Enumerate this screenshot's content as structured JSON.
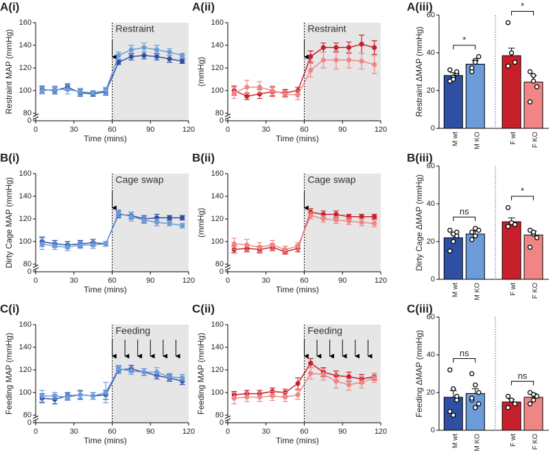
{
  "chart_data": [
    {
      "type": "line",
      "panel_label": "A(i)",
      "ylabel": "Restraint MAP (mmHg)",
      "xlabel": "Time (mins)",
      "x": [
        5,
        15,
        25,
        35,
        45,
        55,
        65,
        75,
        85,
        95,
        105,
        115
      ],
      "xlim": [
        0,
        120
      ],
      "xticks": [
        0,
        30,
        60,
        90,
        120
      ],
      "ylim": [
        80,
        160
      ],
      "yticks": [
        80,
        100,
        120,
        140,
        160
      ],
      "y_break_tick": 0,
      "annotation": "Restraint",
      "shade_xlim": [
        60,
        120
      ],
      "arrows_x": [
        60
      ],
      "series": [
        {
          "color": "#2f4fa2",
          "values": [
            101,
            100,
            103,
            98,
            97,
            99,
            125,
            130,
            131,
            130,
            128,
            126
          ],
          "errors": [
            3,
            3,
            3,
            3,
            2,
            3,
            2,
            3,
            3,
            3,
            3,
            2
          ]
        },
        {
          "color": "#6b9bd8",
          "values": [
            100,
            101,
            101,
            99,
            98,
            100,
            131,
            136,
            138,
            136,
            134,
            131
          ],
          "errors": [
            3,
            3,
            4,
            3,
            2,
            3,
            3,
            4,
            4,
            4,
            3,
            2
          ]
        }
      ]
    },
    {
      "type": "line",
      "panel_label": "A(ii)",
      "ylabel": "(mmHg)",
      "xlabel": "Time (mins)",
      "x": [
        5,
        15,
        25,
        35,
        45,
        55,
        65,
        75,
        85,
        95,
        105,
        115
      ],
      "xlim": [
        0,
        120
      ],
      "xticks": [
        0,
        30,
        60,
        90,
        120
      ],
      "ylim": [
        80,
        160
      ],
      "yticks": [
        80,
        100,
        120,
        140,
        160
      ],
      "y_break_tick": 0,
      "annotation": "Restraint",
      "shade_xlim": [
        60,
        120
      ],
      "arrows_x": [
        60
      ],
      "series": [
        {
          "color": "#c8202a",
          "values": [
            100,
            95,
            97,
            99,
            98,
            100,
            130,
            138,
            138,
            138,
            141,
            138
          ],
          "errors": [
            4,
            3,
            4,
            4,
            3,
            3,
            5,
            4,
            4,
            5,
            8,
            6
          ]
        },
        {
          "color": "#f08585",
          "values": [
            98,
            103,
            103,
            100,
            97,
            96,
            118,
            127,
            127,
            127,
            126,
            123
          ],
          "errors": [
            5,
            6,
            5,
            4,
            3,
            4,
            6,
            7,
            8,
            7,
            7,
            8
          ]
        }
      ]
    },
    {
      "type": "bar",
      "panel_label": "A(iii)",
      "ylabel": "Restraint ΔMAP (mmHg)",
      "categories": [
        "M wt",
        "M KO",
        "F wt",
        "F KO"
      ],
      "values": [
        28,
        34,
        38.5,
        24.5
      ],
      "errors": [
        1.5,
        2,
        4,
        3.5
      ],
      "colors": [
        "#2f4fa2",
        "#6b9bd8",
        "#c8202a",
        "#f08585"
      ],
      "points": [
        [
          25,
          27,
          29,
          31,
          26,
          30
        ],
        [
          32,
          36,
          38,
          30,
          35
        ],
        [
          56,
          40,
          35,
          33
        ],
        [
          30,
          28,
          22,
          14,
          25
        ]
      ],
      "ylim": [
        0,
        60
      ],
      "yticks": [
        0,
        20,
        40,
        60
      ],
      "significance": [
        "*",
        "*"
      ]
    },
    {
      "type": "line",
      "panel_label": "B(i)",
      "ylabel": "Dirty Cage MAP (mmHg)",
      "xlabel": "Time (mins)",
      "x": [
        5,
        15,
        25,
        35,
        45,
        55,
        65,
        75,
        85,
        95,
        105,
        115
      ],
      "xlim": [
        0,
        120
      ],
      "xticks": [
        0,
        30,
        60,
        90,
        120
      ],
      "ylim": [
        80,
        160
      ],
      "yticks": [
        80,
        100,
        120,
        140,
        160
      ],
      "y_break_tick": 0,
      "annotation": "Cage swap",
      "shade_xlim": [
        60,
        120
      ],
      "arrows_x": [
        60
      ],
      "series": [
        {
          "color": "#2f4fa2",
          "values": [
            100,
            98,
            97,
            98,
            99,
            98,
            124,
            123,
            120,
            121,
            121,
            121
          ],
          "errors": [
            4,
            3,
            3,
            3,
            3,
            2,
            3,
            3,
            3,
            3,
            2,
            2
          ]
        },
        {
          "color": "#6b9bd8",
          "values": [
            98,
            96,
            95,
            97,
            97,
            98,
            125,
            122,
            119,
            117,
            116,
            114
          ],
          "errors": [
            5,
            3,
            3,
            3,
            3,
            2,
            3,
            4,
            3,
            3,
            2,
            2
          ]
        }
      ]
    },
    {
      "type": "line",
      "panel_label": "B(ii)",
      "ylabel": "(mmHg)",
      "xlabel": "Time (mins)",
      "x": [
        5,
        15,
        25,
        35,
        45,
        55,
        65,
        75,
        85,
        95,
        105,
        115
      ],
      "xlim": [
        0,
        120
      ],
      "xticks": [
        0,
        30,
        60,
        90,
        120
      ],
      "ylim": [
        80,
        160
      ],
      "yticks": [
        80,
        100,
        120,
        140,
        160
      ],
      "y_break_tick": 0,
      "annotation": "Cage swap",
      "shade_xlim": [
        60,
        120
      ],
      "arrows_x": [
        60
      ],
      "series": [
        {
          "color": "#c8202a",
          "values": [
            93,
            94,
            93,
            95,
            91,
            94,
            126,
            124,
            124,
            122,
            122,
            122
          ],
          "errors": [
            3,
            3,
            3,
            3,
            2,
            3,
            3,
            3,
            3,
            2,
            2,
            2
          ]
        },
        {
          "color": "#f08585",
          "values": [
            98,
            97,
            95,
            97,
            93,
            96,
            123,
            120,
            119,
            118,
            117,
            116
          ],
          "errors": [
            5,
            5,
            4,
            4,
            3,
            3,
            3,
            3,
            3,
            3,
            3,
            3
          ]
        }
      ]
    },
    {
      "type": "bar",
      "panel_label": "B(iii)",
      "ylabel": "Dirty Cage ΔMAP (mmHg)",
      "categories": [
        "M wt",
        "M KO",
        "F wt",
        "F KO"
      ],
      "values": [
        22,
        24,
        30.5,
        23.5
      ],
      "errors": [
        2,
        1.5,
        2,
        2
      ],
      "colors": [
        "#2f4fa2",
        "#6b9bd8",
        "#c8202a",
        "#f08585"
      ],
      "points": [
        [
          15,
          20,
          23,
          26,
          24,
          25
        ],
        [
          21,
          23,
          26,
          25,
          27
        ],
        [
          38,
          30,
          29,
          28
        ],
        [
          26,
          24,
          22,
          17,
          25
        ]
      ],
      "ylim": [
        0,
        60
      ],
      "yticks": [
        0,
        20,
        40,
        60
      ],
      "significance": [
        "ns",
        "*"
      ]
    },
    {
      "type": "line",
      "panel_label": "C(i)",
      "ylabel": "Feeding MAP (mmHg)",
      "xlabel": "Time (mins)",
      "x": [
        5,
        15,
        25,
        35,
        45,
        55,
        65,
        75,
        85,
        95,
        105,
        115
      ],
      "xlim": [
        0,
        120
      ],
      "xticks": [
        0,
        30,
        60,
        90,
        120
      ],
      "ylim": [
        80,
        160
      ],
      "yticks": [
        80,
        100,
        120,
        140,
        160
      ],
      "y_break_tick": 0,
      "annotation": "Feeding",
      "shade_xlim": [
        60,
        120
      ],
      "arrows_x": [
        60,
        70,
        80,
        90,
        100,
        110
      ],
      "series": [
        {
          "color": "#2f4fa2",
          "values": [
            95,
            94,
            97,
            98,
            97,
            98,
            120,
            121,
            118,
            115,
            113,
            110
          ],
          "errors": [
            4,
            4,
            3,
            4,
            3,
            4,
            3,
            3,
            3,
            3,
            3,
            3
          ]
        },
        {
          "color": "#6b9bd8",
          "values": [
            97,
            97,
            96,
            98,
            97,
            100,
            121,
            119,
            118,
            118,
            114,
            113
          ],
          "errors": [
            5,
            3,
            3,
            3,
            3,
            9,
            3,
            3,
            3,
            4,
            3,
            3
          ]
        }
      ]
    },
    {
      "type": "line",
      "panel_label": "C(ii)",
      "ylabel": "Feeding MAP (mmHg)",
      "xlabel": "Time (mins)",
      "x": [
        5,
        15,
        25,
        35,
        45,
        55,
        65,
        75,
        85,
        95,
        105,
        115
      ],
      "xlim": [
        0,
        120
      ],
      "xticks": [
        0,
        30,
        60,
        90,
        120
      ],
      "ylim": [
        80,
        160
      ],
      "yticks": [
        80,
        100,
        120,
        140,
        160
      ],
      "y_break_tick": 0,
      "annotation": "Feeding",
      "shade_xlim": [
        60,
        120
      ],
      "arrows_x": [
        60,
        70,
        80,
        90,
        100,
        110
      ],
      "series": [
        {
          "color": "#c8202a",
          "values": [
            98,
            99,
            99,
            101,
            100,
            108,
            126,
            118,
            115,
            114,
            112,
            114
          ],
          "errors": [
            3,
            3,
            3,
            3,
            3,
            5,
            4,
            4,
            4,
            4,
            4,
            3
          ]
        },
        {
          "color": "#f08585",
          "values": [
            95,
            96,
            96,
            97,
            96,
            98,
            117,
            116,
            110,
            107,
            109,
            113
          ],
          "errors": [
            5,
            4,
            4,
            4,
            4,
            4,
            5,
            5,
            6,
            5,
            5,
            4
          ]
        }
      ]
    },
    {
      "type": "bar",
      "panel_label": "C(iii)",
      "ylabel": "Feeding ΔMAP (mmHg)",
      "categories": [
        "M wt",
        "M KO",
        "F wt",
        "F KO"
      ],
      "values": [
        17.5,
        19.5,
        15,
        17.5
      ],
      "errors": [
        3.5,
        2.5,
        1.5,
        2
      ],
      "colors": [
        "#2f4fa2",
        "#6b9bd8",
        "#c8202a",
        "#f08585"
      ],
      "points": [
        [
          32,
          22,
          18,
          10,
          8,
          16
        ],
        [
          30,
          24,
          20,
          16,
          12,
          14,
          17
        ],
        [
          18,
          16,
          14,
          12
        ],
        [
          20,
          19,
          18,
          14,
          16
        ]
      ],
      "ylim": [
        0,
        60
      ],
      "yticks": [
        0,
        20,
        40,
        60
      ],
      "significance": [
        "ns",
        "ns"
      ]
    }
  ]
}
